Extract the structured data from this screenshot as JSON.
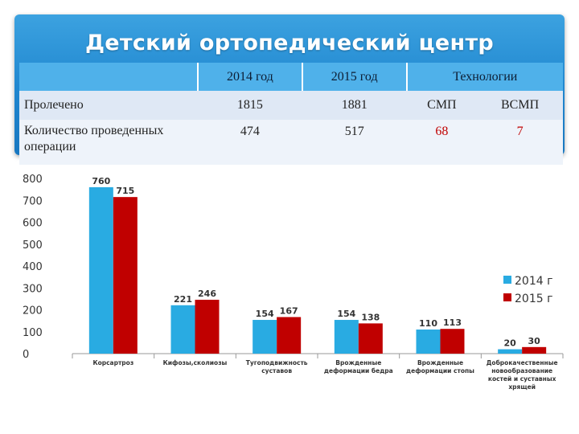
{
  "slide": {
    "title": "Детский ортопедический центр"
  },
  "table": {
    "headers": [
      "",
      "2014 год",
      "2015 год",
      "Технологии"
    ],
    "rows": [
      {
        "label": "Пролечено",
        "v2014": "1815",
        "v2015": "1881",
        "tech1": "СМП",
        "tech2": "ВСМП"
      },
      {
        "label": "Количество проведенных операции",
        "v2014": "474",
        "v2015": "517",
        "tech1": "68",
        "tech2": "7"
      }
    ]
  },
  "chart_data": {
    "type": "bar",
    "categories": [
      [
        "Корсартроз"
      ],
      [
        "Кифозы,сколиозы"
      ],
      [
        "Тугоподвижность",
        "суставов"
      ],
      [
        "Врожденные",
        "деформации бедра"
      ],
      [
        "Врожденные",
        "деформации стопы"
      ],
      [
        "Доброкачественные",
        "новообразование",
        "костей и суставных",
        "хрящей"
      ]
    ],
    "series": [
      {
        "name": "2014 г",
        "values": [
          760,
          221,
          154,
          154,
          110,
          20
        ],
        "color": "#29abe2"
      },
      {
        "name": "2015 г",
        "values": [
          715,
          246,
          167,
          138,
          113,
          30
        ],
        "color": "#c00000"
      }
    ],
    "ylim": [
      0,
      800
    ],
    "yticks": [
      0,
      100,
      200,
      300,
      400,
      500,
      600,
      700,
      800
    ],
    "grid": false,
    "legend": "right"
  }
}
